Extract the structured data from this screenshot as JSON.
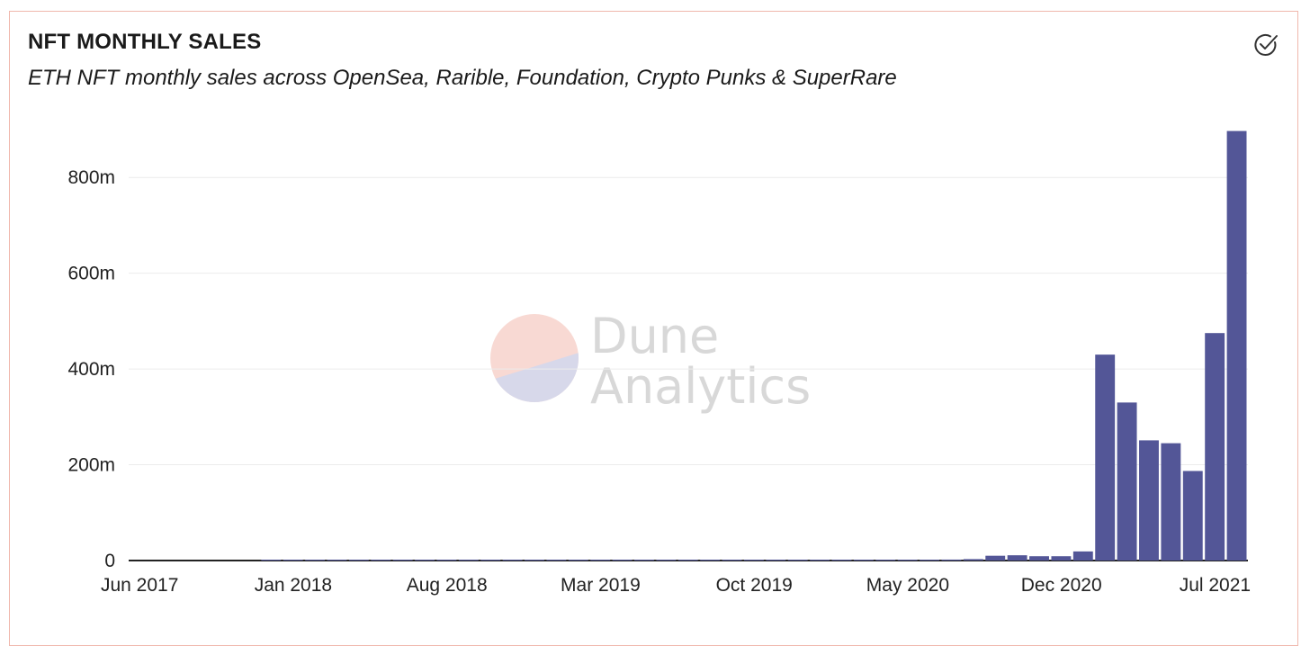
{
  "chart_data": {
    "type": "bar",
    "title": "NFT MONTHLY SALES",
    "subtitle": "ETH NFT monthly sales across OpenSea, Rarible, Foundation, Crypto Punks & SuperRare",
    "xlabel": "",
    "ylabel": "",
    "x_start": "2017-06",
    "x_end": "2021-08",
    "x_ticks": [
      "Jun 2017",
      "Jan 2018",
      "Aug 2018",
      "Mar 2019",
      "Oct 2019",
      "May 2020",
      "Dec 2020",
      "Jul 2021"
    ],
    "y_ticks": [
      "0",
      "200m",
      "400m",
      "600m",
      "800m"
    ],
    "ylim": [
      0,
      900000000
    ],
    "grid": true,
    "bar_color": "#535697",
    "categories": [
      "2017-06",
      "2017-07",
      "2017-08",
      "2017-09",
      "2017-10",
      "2017-11",
      "2017-12",
      "2018-01",
      "2018-02",
      "2018-03",
      "2018-04",
      "2018-05",
      "2018-06",
      "2018-07",
      "2018-08",
      "2018-09",
      "2018-10",
      "2018-11",
      "2018-12",
      "2019-01",
      "2019-02",
      "2019-03",
      "2019-04",
      "2019-05",
      "2019-06",
      "2019-07",
      "2019-08",
      "2019-09",
      "2019-10",
      "2019-11",
      "2019-12",
      "2020-01",
      "2020-02",
      "2020-03",
      "2020-04",
      "2020-05",
      "2020-06",
      "2020-07",
      "2020-08",
      "2020-09",
      "2020-10",
      "2020-11",
      "2020-12",
      "2021-01",
      "2021-02",
      "2021-03",
      "2021-04",
      "2021-05",
      "2021-06",
      "2021-07",
      "2021-08"
    ],
    "values": [
      0,
      0,
      0,
      0,
      0,
      0,
      500000,
      600000,
      400000,
      400000,
      300000,
      300000,
      300000,
      300000,
      300000,
      300000,
      300000,
      300000,
      300000,
      300000,
      300000,
      300000,
      300000,
      400000,
      400000,
      500000,
      500000,
      600000,
      600000,
      700000,
      800000,
      900000,
      1000000,
      1000000,
      1200000,
      1400000,
      1600000,
      2000000,
      3000000,
      10000000,
      11000000,
      9000000,
      9000000,
      19000000,
      430000000,
      330000000,
      251000000,
      245000000,
      187000000,
      475000000,
      897000000
    ]
  },
  "watermark": {
    "brand_line1": "Dune",
    "brand_line2": "Analytics"
  },
  "icons": {
    "status": "check-circle-icon"
  }
}
